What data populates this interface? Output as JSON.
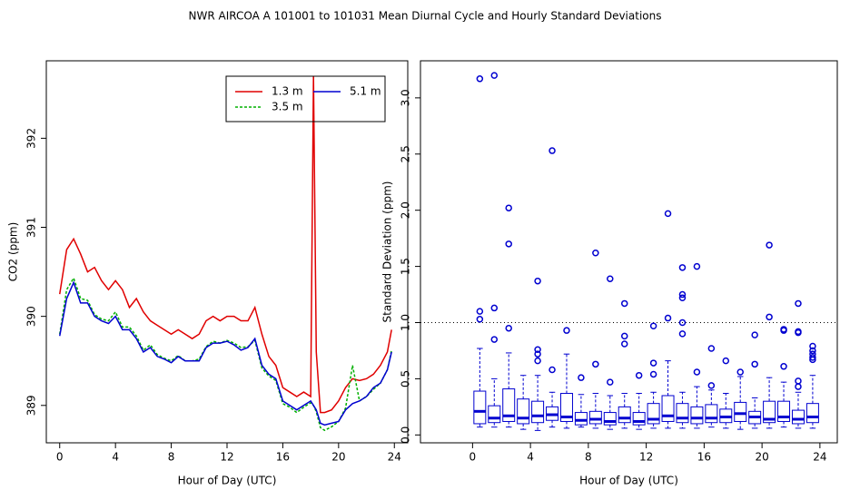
{
  "title": "NWR   AIRCOA A   101001 to 101031   Mean Diurnal Cycle and Hourly Standard Deviations",
  "chart_data": [
    {
      "type": "line",
      "xlabel": "Hour of Day (UTC)",
      "ylabel": "CO2 (ppm)",
      "xlim": [
        -0.96,
        24.96
      ],
      "ylim": [
        388.58,
        392.87
      ],
      "xticks": [
        0,
        4,
        8,
        12,
        16,
        20,
        24
      ],
      "yticks": [
        389,
        390,
        391,
        392
      ],
      "legend": "top-right",
      "x": [
        0,
        0.5,
        1,
        1.5,
        2,
        2.5,
        3,
        3.5,
        4,
        4.5,
        5,
        5.5,
        6,
        6.5,
        7,
        7.5,
        8,
        8.5,
        9,
        9.5,
        10,
        10.5,
        11,
        11.5,
        12,
        12.5,
        13,
        13.5,
        14,
        14.5,
        15,
        15.5,
        16,
        16.5,
        17,
        17.5,
        18,
        18.2,
        18.4,
        18.7,
        19,
        19.5,
        20,
        20.5,
        21,
        21.5,
        22,
        22.5,
        23,
        23.5,
        23.8
      ],
      "series": [
        {
          "name": "1.3 m",
          "color": "#e00000",
          "linestyle": "solid",
          "values": [
            390.25,
            390.75,
            390.87,
            390.7,
            390.5,
            390.55,
            390.4,
            390.3,
            390.4,
            390.3,
            390.1,
            390.2,
            390.05,
            389.95,
            389.9,
            389.85,
            389.8,
            389.85,
            389.8,
            389.75,
            389.8,
            389.95,
            390.0,
            389.95,
            390.0,
            390.0,
            389.95,
            389.95,
            390.1,
            389.8,
            389.55,
            389.45,
            389.2,
            389.15,
            389.1,
            389.15,
            389.1,
            392.7,
            389.6,
            388.92,
            388.92,
            388.95,
            389.05,
            389.2,
            389.3,
            389.28,
            389.3,
            389.35,
            389.45,
            389.6,
            389.85
          ]
        },
        {
          "name": "3.5 m",
          "color": "#00b000",
          "linestyle": "dashed",
          "values": [
            389.8,
            390.3,
            390.43,
            390.2,
            390.18,
            390.02,
            389.97,
            389.95,
            390.05,
            389.88,
            389.88,
            389.78,
            389.62,
            389.68,
            389.57,
            389.53,
            389.5,
            389.56,
            389.5,
            389.5,
            389.52,
            389.66,
            389.72,
            389.7,
            389.73,
            389.7,
            389.65,
            389.66,
            389.73,
            389.42,
            389.33,
            389.28,
            389.02,
            388.98,
            388.92,
            388.98,
            389.03,
            389.0,
            388.93,
            388.75,
            388.72,
            388.76,
            388.82,
            388.97,
            389.45,
            389.05,
            389.1,
            389.18,
            389.25,
            389.4,
            389.62
          ]
        },
        {
          "name": "5.1 m",
          "color": "#0000d0",
          "linestyle": "solid",
          "values": [
            389.78,
            390.2,
            390.38,
            390.15,
            390.15,
            390.0,
            389.95,
            389.92,
            390.0,
            389.85,
            389.85,
            389.75,
            389.6,
            389.65,
            389.55,
            389.52,
            389.48,
            389.55,
            389.5,
            389.5,
            389.5,
            389.65,
            389.7,
            389.7,
            389.72,
            389.68,
            389.62,
            389.65,
            389.75,
            389.45,
            389.35,
            389.3,
            389.05,
            389.0,
            388.95,
            389.0,
            389.05,
            389.0,
            388.95,
            388.8,
            388.78,
            388.8,
            388.82,
            388.95,
            389.02,
            389.05,
            389.1,
            389.2,
            389.25,
            389.4,
            389.6
          ]
        }
      ]
    },
    {
      "type": "box",
      "xlabel": "Hour of Day (UTC)",
      "ylabel": "Standard Deviation (ppm)",
      "xlim": [
        -3.6,
        25.2
      ],
      "ylim": [
        -0.07,
        3.33
      ],
      "xticks": [
        0,
        4,
        8,
        12,
        16,
        20,
        24
      ],
      "yticks": [
        {
          "value": 0,
          "label": "0.0"
        },
        0.5,
        {
          "value": 1,
          "label": "1.0"
        },
        1.5,
        {
          "value": 2,
          "label": "2.0"
        },
        2.5,
        {
          "value": 3,
          "label": "3.0"
        }
      ],
      "hline": 1,
      "color": "#0000d0",
      "x": [
        0.5,
        1.5,
        2.5,
        3.5,
        4.5,
        5.5,
        6.5,
        7.5,
        8.5,
        9.5,
        10.5,
        11.5,
        12.5,
        13.5,
        14.5,
        15.5,
        16.5,
        17.5,
        18.5,
        19.5,
        20.5,
        21.5,
        22.5,
        23.5
      ],
      "whislo": [
        0.07,
        0.07,
        0.07,
        0.05,
        0.04,
        0.07,
        0.06,
        0.07,
        0.06,
        0.05,
        0.06,
        0.05,
        0.06,
        0.06,
        0.06,
        0.06,
        0.07,
        0.06,
        0.05,
        0.06,
        0.06,
        0.07,
        0.06,
        0.06
      ],
      "q1": [
        0.1,
        0.11,
        0.12,
        0.1,
        0.11,
        0.13,
        0.12,
        0.09,
        0.1,
        0.09,
        0.11,
        0.09,
        0.1,
        0.12,
        0.11,
        0.1,
        0.11,
        0.11,
        0.12,
        0.1,
        0.11,
        0.12,
        0.1,
        0.11
      ],
      "median": [
        0.21,
        0.15,
        0.17,
        0.15,
        0.17,
        0.18,
        0.16,
        0.13,
        0.14,
        0.12,
        0.15,
        0.12,
        0.14,
        0.17,
        0.15,
        0.15,
        0.15,
        0.16,
        0.19,
        0.16,
        0.14,
        0.16,
        0.14,
        0.16
      ],
      "q3": [
        0.39,
        0.26,
        0.41,
        0.32,
        0.3,
        0.25,
        0.37,
        0.2,
        0.21,
        0.2,
        0.25,
        0.2,
        0.28,
        0.35,
        0.28,
        0.25,
        0.27,
        0.23,
        0.29,
        0.21,
        0.3,
        0.3,
        0.22,
        0.28
      ],
      "whishi": [
        0.77,
        0.5,
        0.73,
        0.53,
        0.53,
        0.38,
        0.72,
        0.36,
        0.37,
        0.35,
        0.37,
        0.37,
        0.38,
        0.66,
        0.38,
        0.43,
        0.4,
        0.37,
        0.52,
        0.33,
        0.51,
        0.47,
        0.38,
        0.53
      ],
      "outliers": [
        [
          3.17,
          1.1,
          1.03
        ],
        [
          3.2,
          1.13,
          0.85
        ],
        [
          2.02,
          1.7,
          0.95
        ],
        [],
        [
          1.37,
          0.76,
          0.72,
          0.66
        ],
        [
          2.53,
          0.58
        ],
        [
          0.93
        ],
        [
          0.51
        ],
        [
          1.62,
          0.63
        ],
        [
          1.39,
          0.47
        ],
        [
          1.17,
          0.88,
          0.81
        ],
        [
          0.53
        ],
        [
          0.97,
          0.64,
          0.54
        ],
        [
          1.97,
          1.04
        ],
        [
          1.49,
          1.25,
          1.22,
          1.0,
          0.9
        ],
        [
          1.5,
          0.56
        ],
        [
          0.77,
          0.44
        ],
        [
          0.66
        ],
        [
          0.56
        ],
        [
          0.89,
          0.63
        ],
        [
          1.69,
          1.05
        ],
        [
          0.94,
          0.93,
          0.61
        ],
        [
          1.17,
          0.92,
          0.91,
          0.48,
          0.43
        ],
        [
          0.79,
          0.75,
          0.72,
          0.69,
          0.67
        ]
      ]
    }
  ]
}
